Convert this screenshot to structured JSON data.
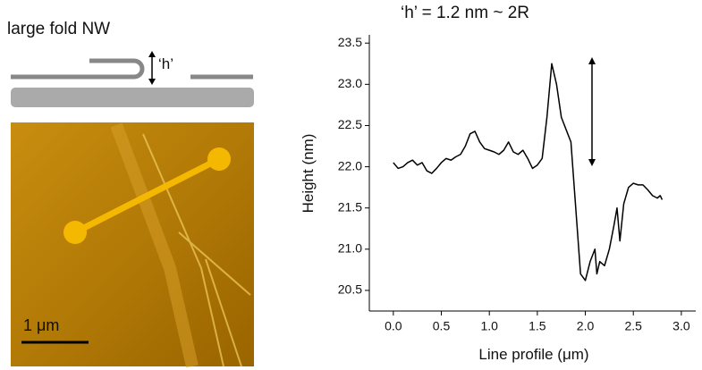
{
  "schematic": {
    "label": "large fold NW",
    "height_label": "‘h’"
  },
  "image": {
    "scale_label": "1 μm"
  },
  "chart_data": {
    "type": "line",
    "title": "‘h’ = 1.2 nm ~ 2R",
    "x_label": "Line profile (μm)",
    "y_label": "Height (nm)",
    "color": "#000000",
    "x": [
      0.0,
      0.05,
      0.1,
      0.15,
      0.2,
      0.25,
      0.3,
      0.35,
      0.4,
      0.45,
      0.5,
      0.55,
      0.6,
      0.65,
      0.7,
      0.75,
      0.8,
      0.85,
      0.9,
      0.95,
      1.0,
      1.05,
      1.1,
      1.15,
      1.2,
      1.25,
      1.3,
      1.35,
      1.4,
      1.45,
      1.5,
      1.55,
      1.6,
      1.65,
      1.7,
      1.75,
      1.8,
      1.85,
      1.9,
      1.95,
      2.0,
      2.05,
      2.1,
      2.12,
      2.15,
      2.2,
      2.25,
      2.3,
      2.33,
      2.36,
      2.4,
      2.45,
      2.5,
      2.55,
      2.6,
      2.65,
      2.7,
      2.75,
      2.78,
      2.8
    ],
    "values": [
      22.05,
      21.98,
      22.0,
      22.05,
      22.08,
      22.02,
      22.05,
      21.95,
      21.92,
      21.98,
      22.05,
      22.1,
      22.08,
      22.12,
      22.15,
      22.25,
      22.4,
      22.43,
      22.3,
      22.22,
      22.2,
      22.18,
      22.15,
      22.2,
      22.3,
      22.18,
      22.15,
      22.2,
      22.1,
      21.98,
      22.02,
      22.1,
      22.6,
      23.25,
      23.0,
      22.6,
      22.45,
      22.3,
      21.5,
      20.7,
      20.62,
      20.85,
      21.0,
      20.7,
      20.85,
      20.8,
      21.0,
      21.3,
      21.5,
      21.1,
      21.55,
      21.75,
      21.8,
      21.78,
      21.78,
      21.72,
      21.65,
      21.62,
      21.65,
      21.6
    ],
    "xlim": [
      -0.25,
      3.15
    ],
    "ylim": [
      20.25,
      23.6
    ],
    "xticks": [
      {
        "value": 0,
        "label": "0.0"
      },
      0.5,
      {
        "value": 1,
        "label": "1.0"
      },
      1.5,
      {
        "value": 2,
        "label": "2.0"
      },
      2.5,
      {
        "value": 3,
        "label": "3.0"
      }
    ],
    "yticks": [
      20.5,
      {
        "value": 21,
        "label": "21.0"
      },
      21.5,
      {
        "value": 22,
        "label": "22.0"
      },
      22.5,
      {
        "value": 23,
        "label": "23.0"
      },
      23.5
    ]
  }
}
